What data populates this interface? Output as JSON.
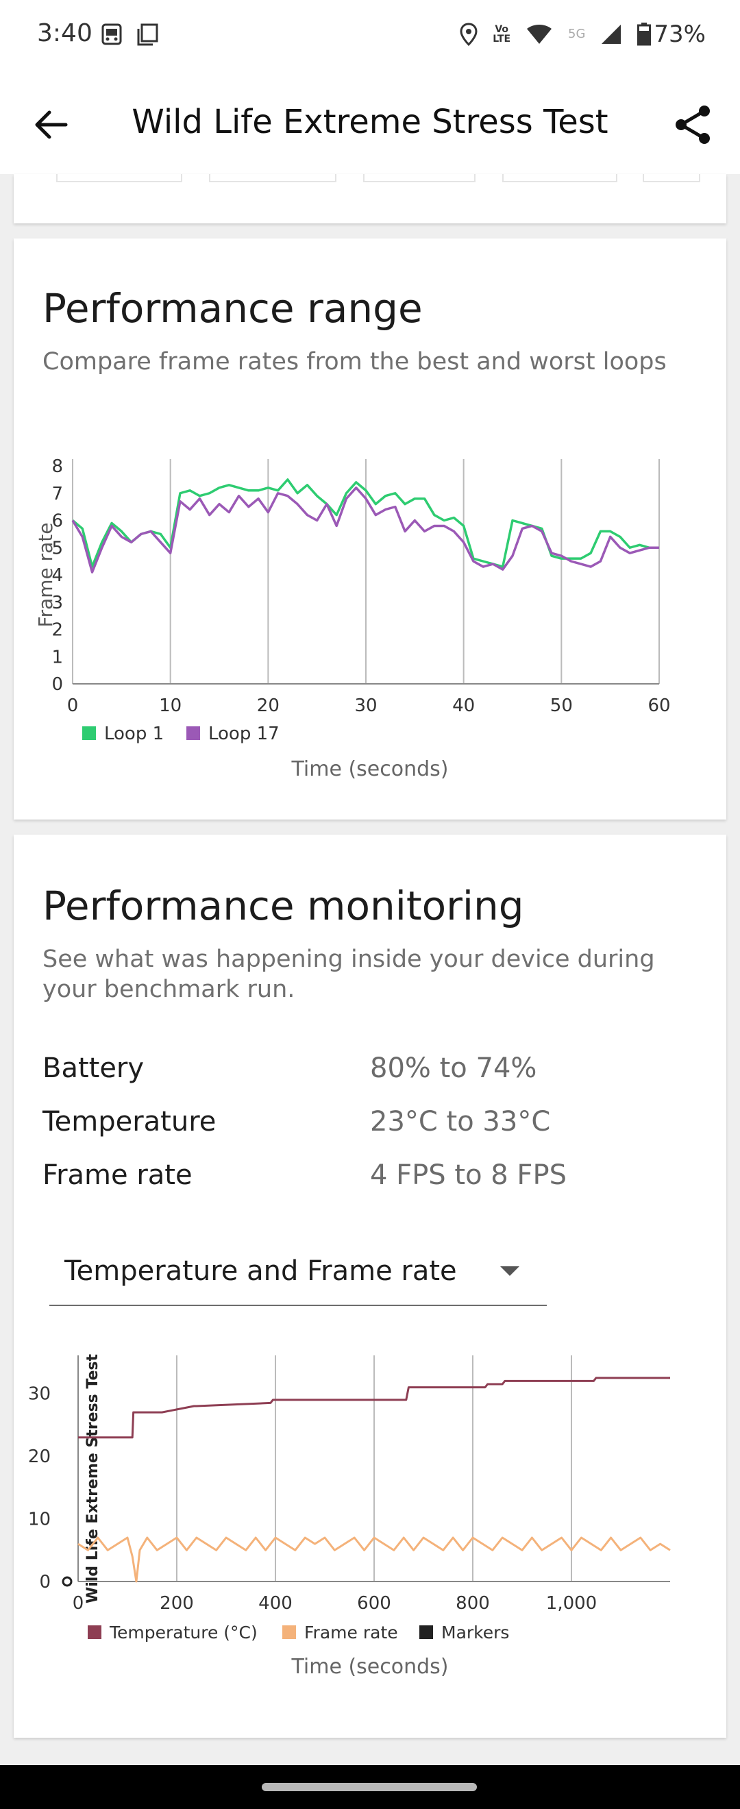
{
  "status_bar": {
    "time": "3:40",
    "battery": "73%",
    "volte_label": "Vo\nLTE",
    "network_label": "5G"
  },
  "app_bar": {
    "title": "Wild Life Extreme Stress Test"
  },
  "performance_range": {
    "title": "Performance range",
    "subtitle": "Compare frame rates from the best and worst loops"
  },
  "performance_monitoring": {
    "title": "Performance monitoring",
    "subtitle": "See what was happening inside your device during your benchmark run.",
    "stats": [
      {
        "label": "Battery",
        "value": "80% to 74%"
      },
      {
        "label": "Temperature",
        "value": "23°C to 33°C"
      },
      {
        "label": "Frame rate",
        "value": "4 FPS to 8 FPS"
      }
    ],
    "dropdown_selected": "Temperature and Frame rate"
  },
  "colors": {
    "loop1": "#2ecc71",
    "loop17": "#9b59b6",
    "temperature": "#8e3e53",
    "frame_rate": "#f4b27a",
    "markers": "#222222"
  },
  "chart_data": [
    {
      "type": "line",
      "xlabel": "Time (seconds)",
      "ylabel": "Frame rate",
      "xlim": [
        0,
        60
      ],
      "ylim": [
        0,
        8
      ],
      "x_ticks": [
        0,
        10,
        20,
        30,
        40,
        50,
        60
      ],
      "y_ticks": [
        0,
        1,
        2,
        3,
        4,
        5,
        6,
        7,
        8
      ],
      "grid": "vertical",
      "legend_position": "bottom-left",
      "series": [
        {
          "name": "Loop 1",
          "x": [
            0,
            1,
            2,
            3,
            4,
            5,
            6,
            7,
            8,
            9,
            10,
            11,
            12,
            13,
            14,
            15,
            16,
            17,
            18,
            19,
            20,
            21,
            22,
            23,
            24,
            25,
            26,
            27,
            28,
            29,
            30,
            31,
            32,
            33,
            34,
            35,
            36,
            37,
            38,
            39,
            40,
            41,
            42,
            43,
            44,
            45,
            46,
            47,
            48,
            49,
            50,
            51,
            52,
            53,
            54,
            55,
            56,
            57,
            58,
            59,
            60
          ],
          "values": [
            6.0,
            5.7,
            4.3,
            5.2,
            5.9,
            5.6,
            5.2,
            5.5,
            5.6,
            5.5,
            5.0,
            7.0,
            7.1,
            6.9,
            7.0,
            7.2,
            7.3,
            7.2,
            7.1,
            7.1,
            7.2,
            7.1,
            7.5,
            7.0,
            7.3,
            6.9,
            6.6,
            6.2,
            7.0,
            7.4,
            7.1,
            6.6,
            6.9,
            7.0,
            6.6,
            6.8,
            6.8,
            6.2,
            6.0,
            6.1,
            5.8,
            4.6,
            4.5,
            4.4,
            4.3,
            6.0,
            5.9,
            5.8,
            5.7,
            4.7,
            4.6,
            4.6,
            4.6,
            4.8,
            5.6,
            5.6,
            5.4,
            5.0,
            5.1,
            5.0,
            5.0
          ]
        },
        {
          "name": "Loop 17",
          "x": [
            0,
            1,
            2,
            3,
            4,
            5,
            6,
            7,
            8,
            9,
            10,
            11,
            12,
            13,
            14,
            15,
            16,
            17,
            18,
            19,
            20,
            21,
            22,
            23,
            24,
            25,
            26,
            27,
            28,
            29,
            30,
            31,
            32,
            33,
            34,
            35,
            36,
            37,
            38,
            39,
            40,
            41,
            42,
            43,
            44,
            45,
            46,
            47,
            48,
            49,
            50,
            51,
            52,
            53,
            54,
            55,
            56,
            57,
            58,
            59,
            60
          ],
          "values": [
            6.0,
            5.4,
            4.1,
            5.0,
            5.8,
            5.4,
            5.2,
            5.5,
            5.6,
            5.2,
            4.8,
            6.7,
            6.4,
            6.8,
            6.2,
            6.6,
            6.3,
            6.9,
            6.5,
            6.8,
            6.3,
            7.0,
            6.9,
            6.6,
            6.2,
            6.0,
            6.6,
            5.8,
            6.8,
            7.2,
            6.8,
            6.2,
            6.4,
            6.5,
            5.6,
            6.0,
            5.6,
            5.8,
            5.8,
            5.6,
            5.2,
            4.5,
            4.3,
            4.4,
            4.2,
            4.7,
            5.7,
            5.8,
            5.6,
            4.8,
            4.7,
            4.5,
            4.4,
            4.3,
            4.5,
            5.4,
            5.0,
            4.8,
            4.9,
            5.0,
            5.0
          ]
        }
      ]
    },
    {
      "type": "line",
      "xlabel": "Time (seconds)",
      "ylabel": "Wild Life Extreme Stress Test",
      "xlim": [
        0,
        1200
      ],
      "ylim": [
        0,
        35
      ],
      "x_ticks": [
        0,
        200,
        400,
        600,
        800,
        1000
      ],
      "x_tick_labels": [
        "0",
        "200",
        "400",
        "600",
        "800",
        "1,000"
      ],
      "y_ticks": [
        0,
        10,
        20,
        30
      ],
      "grid": "vertical",
      "legend_position": "bottom-left",
      "series": [
        {
          "name": "Temperature (°C)",
          "x": [
            0,
            110,
            112,
            170,
            235,
            240,
            390,
            395,
            665,
            670,
            825,
            830,
            860,
            865,
            1045,
            1050,
            1200
          ],
          "values": [
            23,
            23,
            27,
            27,
            28,
            28,
            28.5,
            29,
            29,
            31,
            31,
            31.5,
            31.5,
            32,
            32,
            32.5,
            32.5
          ]
        },
        {
          "name": "Frame rate",
          "x": [
            0,
            20,
            40,
            60,
            80,
            100,
            110,
            118,
            125,
            140,
            160,
            180,
            200,
            220,
            240,
            260,
            280,
            300,
            320,
            340,
            360,
            380,
            400,
            420,
            440,
            460,
            480,
            500,
            520,
            540,
            560,
            580,
            600,
            620,
            640,
            660,
            680,
            700,
            720,
            740,
            760,
            780,
            800,
            820,
            840,
            860,
            880,
            900,
            920,
            940,
            960,
            980,
            1000,
            1020,
            1040,
            1060,
            1080,
            1100,
            1120,
            1140,
            1160,
            1180,
            1200
          ],
          "values": [
            6,
            5,
            7,
            5,
            6,
            7,
            4,
            0,
            5,
            7,
            5,
            6,
            7,
            5,
            7,
            6,
            5,
            7,
            6,
            5,
            7,
            5,
            7,
            6,
            5,
            7,
            6,
            7,
            5,
            6,
            7,
            5,
            7,
            6,
            5,
            7,
            5,
            7,
            6,
            5,
            7,
            5,
            7,
            6,
            5,
            7,
            6,
            5,
            7,
            5,
            6,
            7,
            5,
            7,
            6,
            5,
            7,
            5,
            6,
            7,
            5,
            6,
            5
          ]
        }
      ],
      "legend_extra": [
        "Markers"
      ]
    }
  ]
}
